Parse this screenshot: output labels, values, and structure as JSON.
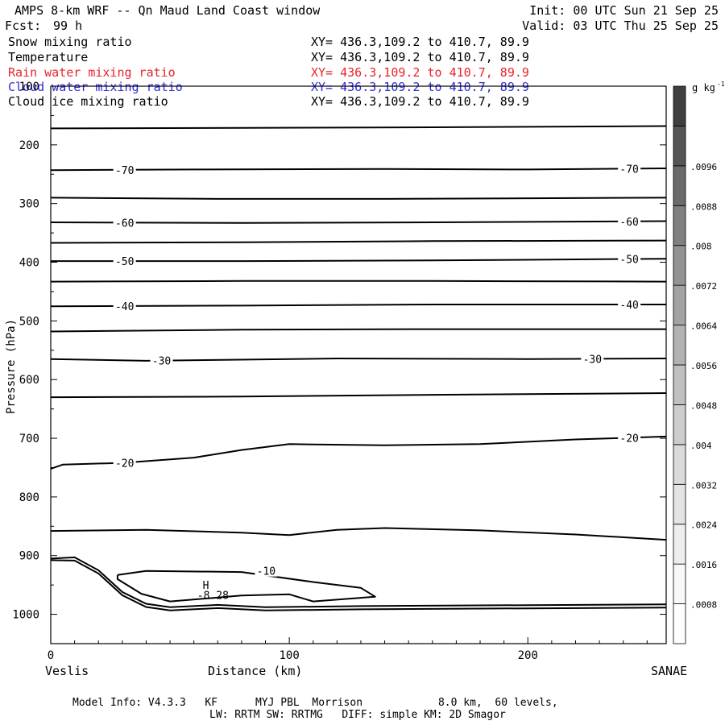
{
  "header": {
    "title": "AMPS 8-km WRF -- Qn Maud Land Coast window",
    "init": "Init: 00 UTC Sun 21 Sep 25",
    "fcst_label": "Fcst:",
    "fcst_value": "99 h",
    "valid": "Valid: 03 UTC Thu 25 Sep 25"
  },
  "legend": [
    {
      "name": "Snow mixing ratio",
      "xy": "XY= 436.3,109.2 to 410.7, 89.9",
      "color": "#000000"
    },
    {
      "name": "Temperature",
      "xy": "XY= 436.3,109.2 to 410.7, 89.9",
      "color": "#000000"
    },
    {
      "name": "Rain water mixing ratio",
      "xy": "XY= 436.3,109.2 to 410.7, 89.9",
      "color": "#e8232b"
    },
    {
      "name": "Cloud water mixing ratio",
      "xy": "XY= 436.3,109.2 to 410.7, 89.9",
      "color": "#2b2bd6"
    },
    {
      "name": "Cloud ice mixing ratio",
      "xy": "XY= 436.3,109.2 to 410.7, 89.9",
      "color": "#000000"
    }
  ],
  "footer": {
    "line1": "Model Info: V4.3.3   KF      MYJ PBL  Morrison            8.0 km,  60 levels,",
    "line2": "LW: RRTM SW: RRTMG   DIFF: simple KM: 2D Smagor"
  },
  "chart_data": {
    "type": "contour",
    "xlabel": "Distance (km)",
    "ylabel": "Pressure (hPa)",
    "x_left_label": "Veslis",
    "x_right_label": "SANAE",
    "xlim": [
      0,
      258
    ],
    "ylim": [
      1050,
      100
    ],
    "x_ticks": [
      0,
      100,
      200
    ],
    "y_ticks": [
      100,
      200,
      300,
      400,
      500,
      600,
      700,
      800,
      900,
      1000
    ],
    "colorbar": {
      "unit": "g kg",
      "unit_exponent": "-1",
      "levels": [
        ".0008",
        ".0016",
        ".0024",
        ".0032",
        ".004",
        ".0048",
        ".0056",
        ".0064",
        ".0072",
        ".008",
        ".0088",
        ".0096"
      ],
      "colors": [
        "#ffffff",
        "#f8f8f8",
        "#eeeeee",
        "#e4e4e4",
        "#dadada",
        "#cdcdcd",
        "#c0c0c0",
        "#b2b2b2",
        "#a3a3a3",
        "#939393",
        "#808080",
        "#6b6b6b",
        "#555555",
        "#3f3f3f"
      ]
    },
    "temperature_contours": [
      {
        "label": "",
        "points": [
          [
            0,
            172
          ],
          [
            80,
            171
          ],
          [
            160,
            170
          ],
          [
            258,
            168
          ]
        ]
      },
      {
        "label": "-70",
        "points": [
          [
            0,
            243
          ],
          [
            60,
            242
          ],
          [
            140,
            241
          ],
          [
            200,
            242
          ],
          [
            258,
            240
          ]
        ]
      },
      {
        "label": "",
        "points": [
          [
            0,
            290
          ],
          [
            70,
            292
          ],
          [
            140,
            292
          ],
          [
            258,
            290
          ]
        ]
      },
      {
        "label": "-60",
        "points": [
          [
            0,
            332
          ],
          [
            80,
            333
          ],
          [
            160,
            332
          ],
          [
            258,
            330
          ]
        ]
      },
      {
        "label": "",
        "points": [
          [
            0,
            367
          ],
          [
            80,
            366
          ],
          [
            160,
            364
          ],
          [
            258,
            363
          ]
        ]
      },
      {
        "label": "-50",
        "points": [
          [
            0,
            398
          ],
          [
            80,
            398
          ],
          [
            160,
            397
          ],
          [
            258,
            394
          ]
        ]
      },
      {
        "label": "",
        "points": [
          [
            0,
            433
          ],
          [
            80,
            432
          ],
          [
            160,
            432
          ],
          [
            258,
            433
          ]
        ]
      },
      {
        "label": "-40",
        "points": [
          [
            0,
            475
          ],
          [
            80,
            474
          ],
          [
            160,
            472
          ],
          [
            258,
            472
          ]
        ]
      },
      {
        "label": "",
        "points": [
          [
            0,
            518
          ],
          [
            80,
            515
          ],
          [
            160,
            514
          ],
          [
            258,
            514
          ]
        ]
      },
      {
        "label": "-30",
        "points": [
          [
            0,
            565
          ],
          [
            40,
            568
          ],
          [
            120,
            564
          ],
          [
            200,
            565
          ],
          [
            258,
            564
          ]
        ]
      },
      {
        "label": "",
        "points": [
          [
            0,
            630
          ],
          [
            80,
            629
          ],
          [
            160,
            626
          ],
          [
            258,
            623
          ]
        ]
      },
      {
        "label": "-20",
        "points": [
          [
            0,
            752
          ],
          [
            5,
            745
          ],
          [
            30,
            742
          ],
          [
            60,
            733
          ],
          [
            80,
            720
          ],
          [
            100,
            710
          ],
          [
            140,
            712
          ],
          [
            180,
            710
          ],
          [
            220,
            702
          ],
          [
            258,
            697
          ]
        ]
      },
      {
        "label": "",
        "points": [
          [
            0,
            858
          ],
          [
            40,
            856
          ],
          [
            80,
            861
          ],
          [
            100,
            865
          ],
          [
            120,
            856
          ],
          [
            140,
            853
          ],
          [
            180,
            857
          ],
          [
            220,
            864
          ],
          [
            258,
            873
          ]
        ]
      },
      {
        "label": "-10",
        "points": [
          [
            28,
            933
          ],
          [
            40,
            926
          ],
          [
            80,
            928
          ],
          [
            110,
            945
          ],
          [
            130,
            955
          ],
          [
            136,
            970
          ],
          [
            110,
            978
          ],
          [
            100,
            966
          ],
          [
            80,
            968
          ],
          [
            50,
            978
          ],
          [
            38,
            965
          ],
          [
            28,
            940
          ],
          [
            28,
            933
          ]
        ]
      }
    ],
    "terrain_profile": [
      [
        0,
        905
      ],
      [
        10,
        903
      ],
      [
        20,
        925
      ],
      [
        30,
        962
      ],
      [
        40,
        982
      ],
      [
        50,
        988
      ],
      [
        70,
        984
      ],
      [
        90,
        988
      ],
      [
        130,
        986
      ],
      [
        258,
        983
      ]
    ],
    "annotations": [
      {
        "text": "H",
        "x": 65,
        "y": 950
      },
      {
        "text": "-8.28",
        "x": 68,
        "y": 967
      }
    ]
  }
}
